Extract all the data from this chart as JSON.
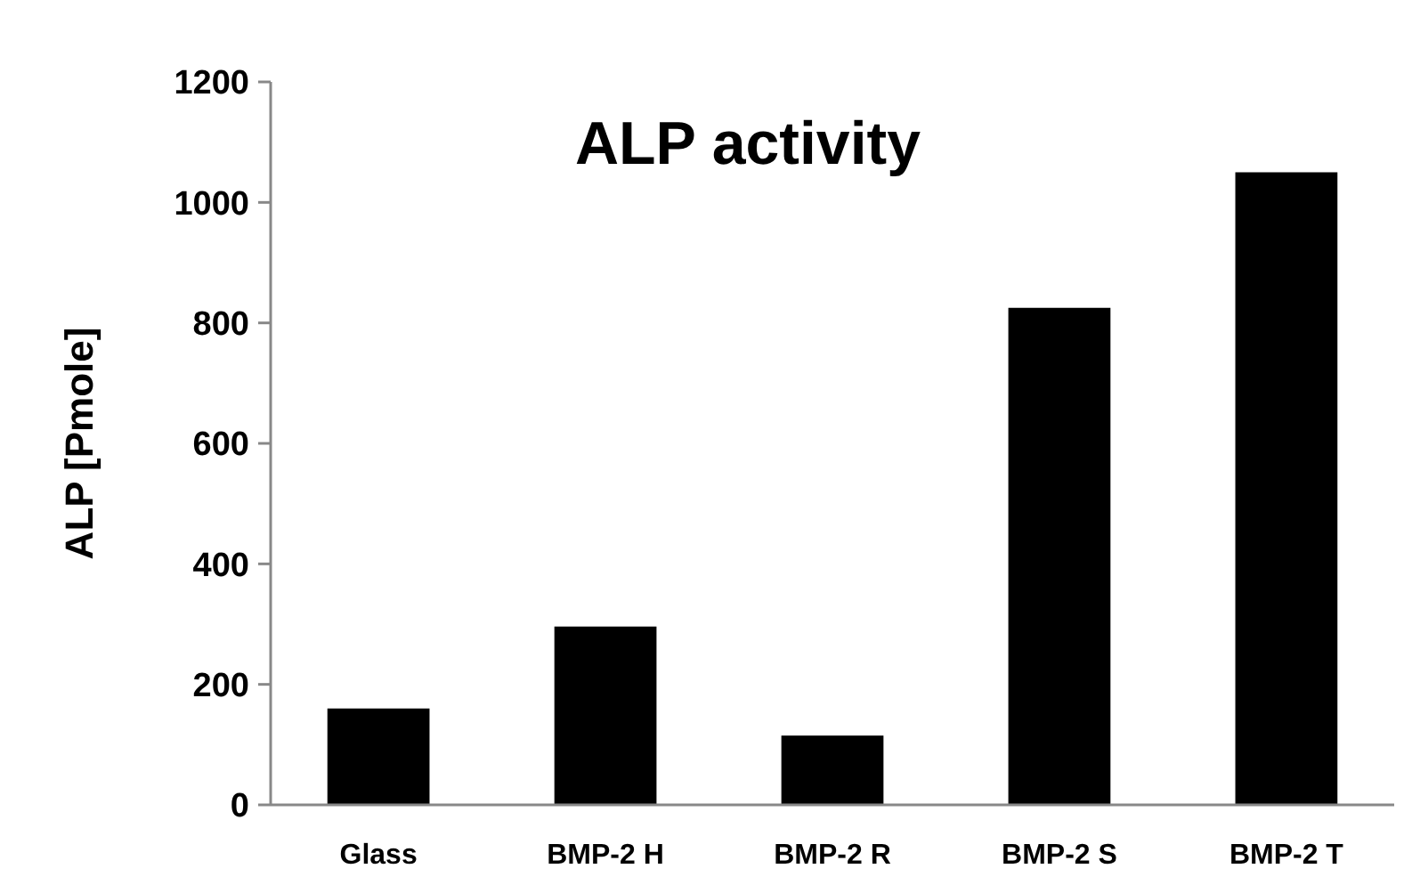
{
  "chart_data": {
    "type": "bar",
    "title": "ALP activity",
    "ylabel": "ALP [Pmole]",
    "categories": [
      "Glass",
      "BMP-2 H",
      "BMP-2 R",
      "BMP-2 S",
      "BMP-2 T"
    ],
    "values": [
      160,
      296,
      115,
      825,
      1050
    ],
    "color": "#000000",
    "ylim": [
      0,
      1200
    ],
    "yticks": [
      0,
      200,
      400,
      600,
      800,
      1000,
      1200
    ],
    "grid": false
  }
}
